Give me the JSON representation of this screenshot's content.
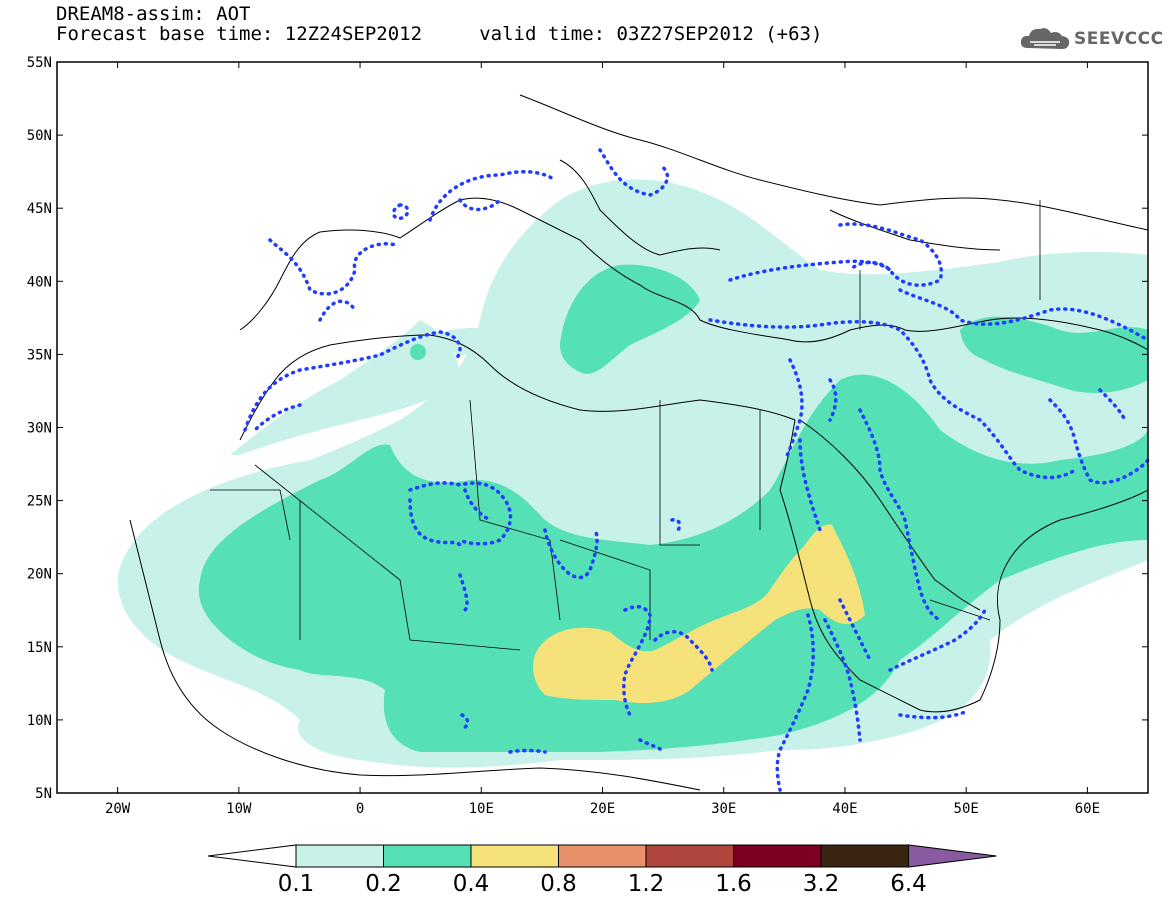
{
  "header": {
    "title": "DREAM8-assim: AOT",
    "subtitle": "Forecast base time: 12Z24SEP2012     valid time: 03Z27SEP2012 (+63)",
    "logo_text": "SEEVCCC"
  },
  "map": {
    "lon_range": [
      -25,
      65
    ],
    "lat_range": [
      5,
      55
    ],
    "lat_ticks": [
      "55N",
      "50N",
      "45N",
      "40N",
      "35N",
      "30N",
      "25N",
      "20N",
      "15N",
      "10N",
      "5N"
    ],
    "lon_ticks": [
      "20W",
      "10W",
      "0",
      "10E",
      "20E",
      "30E",
      "40E",
      "50E",
      "60E"
    ],
    "land_line_color": "#000000",
    "contour_dot_color": "#1f3cff"
  },
  "colorbar": {
    "labels": [
      "0.1",
      "0.2",
      "0.4",
      "0.8",
      "1.2",
      "1.6",
      "3.2",
      "6.4"
    ],
    "colors": [
      "#ffffff",
      "#c8f1e9",
      "#55e0b6",
      "#f5e27a",
      "#e8906a",
      "#b0453c",
      "#7a0022",
      "#3a2412",
      "#8a5aa0"
    ]
  }
}
